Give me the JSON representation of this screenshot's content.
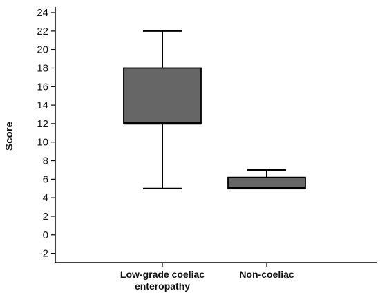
{
  "chart_data": {
    "type": "box",
    "ylabel": "Score",
    "ylim": [
      -3,
      24.6
    ],
    "yticks": [
      "-2",
      "0",
      "2",
      "4",
      "6",
      "8",
      "10",
      "12",
      "14",
      "16",
      "18",
      "20",
      "22",
      "24"
    ],
    "categories": [
      {
        "lines": [
          "Low-grade coeliac",
          "enteropathy"
        ]
      },
      {
        "lines": [
          "Non-coeliac"
        ]
      }
    ],
    "boxes": [
      {
        "whisker_low": 5,
        "q1": 12,
        "median": 12.2,
        "q3": 18,
        "whisker_high": 22
      },
      {
        "whisker_low": 5,
        "q1": 5,
        "median": 5.2,
        "q3": 6.2,
        "whisker_high": 7
      }
    ],
    "box_color": "#666666",
    "line_color": "#000000",
    "grid": false
  }
}
